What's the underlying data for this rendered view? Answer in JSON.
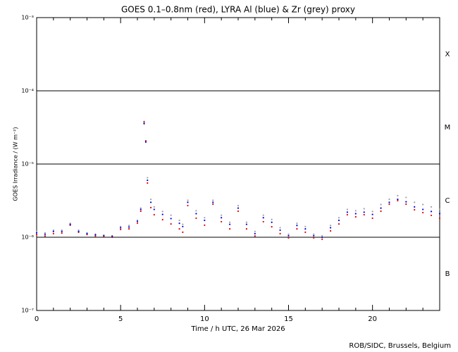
{
  "chart_data": {
    "type": "scatter",
    "title": "GOES 0.1–0.8nm (red), LYRA Al (blue) & Zr (grey) proxy",
    "xlabel": "Time / h UTC, 26 Mar 2026",
    "ylabel": "GOES Irradiance / (W m⁻²)",
    "footer": "ROB/SIDC, Brussels, Belgium",
    "log_y": true,
    "xlim": [
      0,
      24
    ],
    "xticks": [
      0,
      5,
      10,
      15,
      20
    ],
    "xminorticks": [
      1,
      2,
      3,
      4,
      6,
      7,
      8,
      9,
      11,
      12,
      13,
      14,
      16,
      17,
      18,
      19,
      21,
      22,
      23
    ],
    "ylim": [
      1e-07,
      0.001
    ],
    "yticks": [
      {
        "value": 1e-07,
        "label": "10⁻⁷"
      },
      {
        "value": 1e-06,
        "label": "10⁻⁶"
      },
      {
        "value": 1e-05,
        "label": "10⁻⁵"
      },
      {
        "value": 0.0001,
        "label": "10⁻⁴"
      },
      {
        "value": 0.001,
        "label": "10⁻³"
      }
    ],
    "class_labels": [
      {
        "label": "B",
        "value": 1e-07
      },
      {
        "label": "C",
        "value": 1e-06
      },
      {
        "label": "M",
        "value": 1e-05
      },
      {
        "label": "X",
        "value": 0.0001
      }
    ],
    "x": [
      0,
      0.5,
      1,
      1.5,
      2,
      2.5,
      3,
      3.5,
      4,
      4.5,
      5,
      5.5,
      6,
      6.2,
      6.4,
      6.5,
      6.6,
      6.8,
      7,
      7.5,
      8,
      8.5,
      8.7,
      9,
      9.5,
      10,
      10.5,
      11,
      11.5,
      12,
      12.5,
      13,
      13.5,
      14,
      14.5,
      15,
      15.5,
      16,
      16.5,
      17,
      17.5,
      18,
      18.5,
      19,
      19.5,
      20,
      20.5,
      21,
      21.5,
      22,
      22.5,
      23,
      23.5,
      24
    ],
    "series": [
      {
        "color": "#a0a0a0",
        "values": [
          1.2e-06,
          1.15e-06,
          1.25e-06,
          1.25e-06,
          1.55e-06,
          1.25e-06,
          1.15e-06,
          1.1e-06,
          1.07e-06,
          1.05e-06,
          1.4e-06,
          1.45e-06,
          1.7e-06,
          2.5e-06,
          3.5e-05,
          2e-05,
          6.5e-06,
          3.3e-06,
          2.6e-06,
          2.25e-06,
          2e-06,
          1.7e-06,
          1.5e-06,
          3.2e-06,
          2.3e-06,
          1.85e-06,
          3.2e-06,
          2e-06,
          1.6e-06,
          2.7e-06,
          1.6e-06,
          1.2e-06,
          2e-06,
          1.75e-06,
          1.35e-06,
          1.1e-06,
          1.55e-06,
          1.4e-06,
          1.1e-06,
          1.05e-06,
          1.45e-06,
          1.85e-06,
          2.4e-06,
          2.3e-06,
          2.45e-06,
          2.25e-06,
          2.8e-06,
          3.3e-06,
          3.7e-06,
          3.5e-06,
          3e-06,
          2.8e-06,
          2.6e-06,
          2.4e-06
        ]
      },
      {
        "color": "#e00000",
        "values": [
          1.09e-06,
          1.04e-06,
          1.12e-06,
          1.14e-06,
          1.46e-06,
          1.17e-06,
          1.09e-06,
          1.04e-06,
          1.02e-06,
          1e-06,
          1.28e-06,
          1.3e-06,
          1.56e-06,
          2.27e-06,
          3.8e-05,
          2.08e-05,
          5.5e-06,
          2.54e-06,
          2.03e-06,
          1.74e-06,
          1.52e-06,
          1.3e-06,
          1.17e-06,
          2.71e-06,
          1.82e-06,
          1.46e-06,
          2.83e-06,
          1.63e-06,
          1.3e-06,
          2.27e-06,
          1.3e-06,
          1.04e-06,
          1.63e-06,
          1.39e-06,
          1.12e-06,
          9.8e-07,
          1.3e-06,
          1.17e-06,
          9.8e-07,
          9.4e-07,
          1.22e-06,
          1.52e-06,
          2.03e-06,
          1.9e-06,
          2.03e-06,
          1.82e-06,
          2.27e-06,
          2.83e-06,
          3.16e-06,
          2.83e-06,
          2.37e-06,
          2.17e-06,
          1.99e-06,
          1.82e-06
        ]
      },
      {
        "color": "#0000e0",
        "values": [
          1.15e-06,
          1.1e-06,
          1.2e-06,
          1.2e-06,
          1.5e-06,
          1.2e-06,
          1.12e-06,
          1.08e-06,
          1.05e-06,
          1.03e-06,
          1.35e-06,
          1.38e-06,
          1.65e-06,
          2.4e-06,
          3.6e-05,
          2e-05,
          6e-06,
          3e-06,
          2.4e-06,
          2.05e-06,
          1.8e-06,
          1.55e-06,
          1.4e-06,
          3e-06,
          2.1e-06,
          1.7e-06,
          3e-06,
          1.85e-06,
          1.5e-06,
          2.5e-06,
          1.5e-06,
          1.12e-06,
          1.85e-06,
          1.6e-06,
          1.25e-06,
          1.05e-06,
          1.45e-06,
          1.3e-06,
          1.05e-06,
          1e-06,
          1.35e-06,
          1.7e-06,
          2.2e-06,
          2.1e-06,
          2.2e-06,
          2.05e-06,
          2.5e-06,
          3e-06,
          3.3e-06,
          3.05e-06,
          2.6e-06,
          2.4e-06,
          2.25e-06,
          2.1e-06
        ]
      }
    ]
  }
}
